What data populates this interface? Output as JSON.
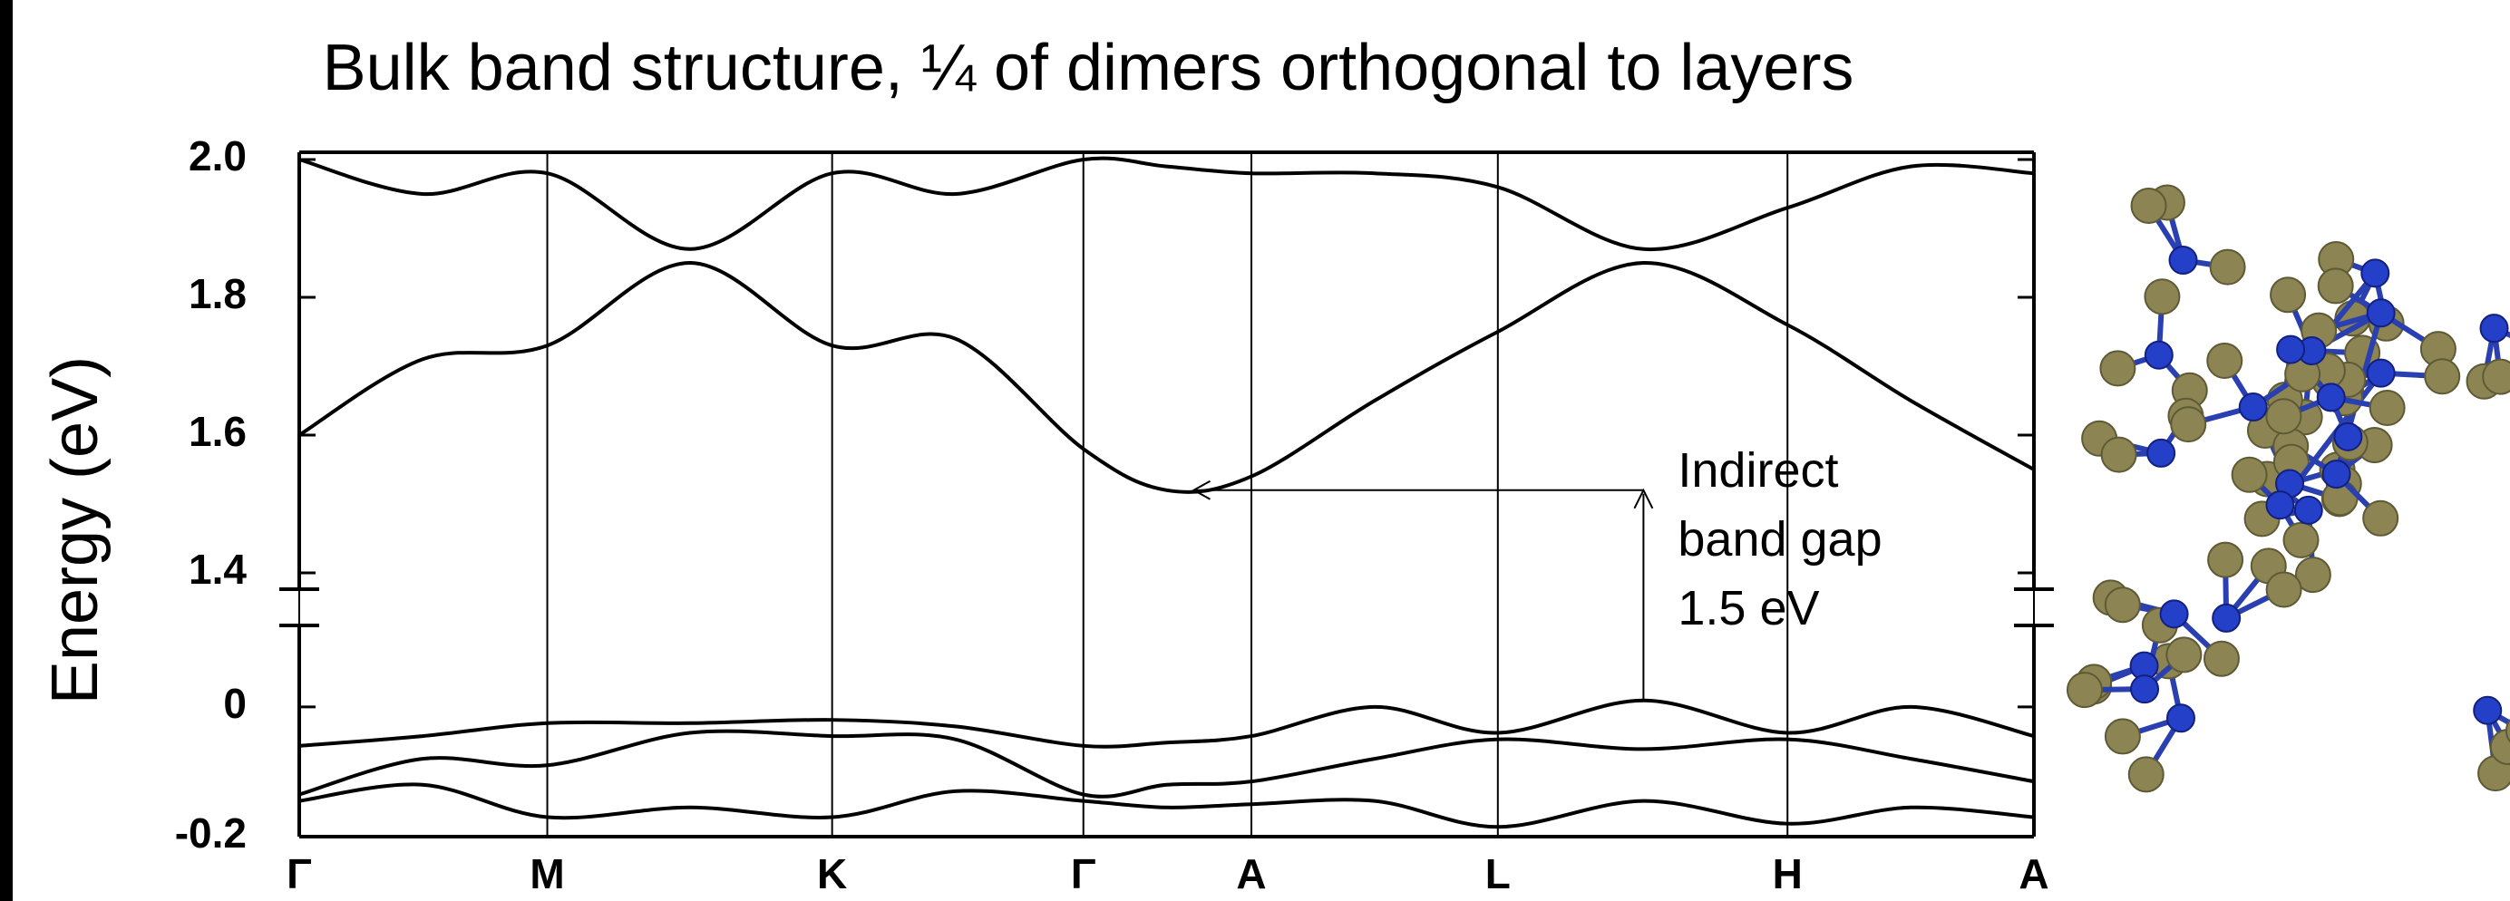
{
  "chart_data": [
    {
      "type": "line",
      "title": "Bulk band structure, ¼ of dimers orthogonal to layers",
      "ylabel": "Energy (eV)",
      "x": [
        0,
        0.77,
        1.55,
        2.44,
        3.33,
        4.1,
        4.9,
        5.42,
        5.95,
        6.72,
        7.49,
        8.4,
        9.3,
        10.07,
        10.84
      ],
      "ylim": [
        1.4,
        2.0
      ],
      "yticks": [
        1.4,
        1.6,
        1.8,
        {
          "value": 2,
          "label": "2.0"
        }
      ],
      "series": [
        {
          "color": "#000000",
          "values": [
            1.6,
            1.71,
            1.73,
            1.85,
            1.73,
            1.74,
            1.58,
            1.52,
            1.54,
            1.65,
            1.75,
            1.85,
            1.76,
            1.65,
            1.55
          ]
        },
        {
          "color": "#000000",
          "values": [
            2.0,
            1.95,
            1.98,
            1.87,
            1.98,
            1.95,
            2.0,
            1.99,
            1.98,
            1.98,
            1.96,
            1.87,
            1.93,
            1.99,
            1.98
          ]
        }
      ],
      "annotation": [
        "Indirect",
        "band gap",
        "1.5 eV"
      ]
    },
    {
      "type": "line",
      "xlim": [
        0,
        10.84
      ],
      "xticks": [
        {
          "value": 0,
          "label": "Γ"
        },
        {
          "value": 1.55,
          "label": "M"
        },
        {
          "value": 3.33,
          "label": "K"
        },
        {
          "value": 4.9,
          "label": "Γ"
        },
        {
          "value": 5.95,
          "label": "A"
        },
        {
          "value": 7.49,
          "label": "L"
        },
        {
          "value": 9.3,
          "label": "H"
        },
        {
          "value": 10.84,
          "label": "A"
        }
      ],
      "ylim": [
        -0.2,
        0.12
      ],
      "yticks": [
        -0.2,
        0
      ],
      "series": [
        {
          "color": "#000000",
          "values": [
            -0.06,
            -0.045,
            -0.025,
            -0.025,
            -0.02,
            -0.03,
            -0.06,
            -0.055,
            -0.045,
            0.0,
            -0.04,
            0.01,
            -0.04,
            0.0,
            -0.045
          ]
        },
        {
          "color": "#000000",
          "values": [
            -0.135,
            -0.08,
            -0.09,
            -0.04,
            -0.045,
            -0.05,
            -0.135,
            -0.12,
            -0.115,
            -0.08,
            -0.05,
            -0.065,
            -0.05,
            -0.08,
            -0.115
          ]
        },
        {
          "color": "#000000",
          "values": [
            -0.145,
            -0.12,
            -0.17,
            -0.155,
            -0.17,
            -0.13,
            -0.145,
            -0.155,
            -0.15,
            -0.145,
            -0.185,
            -0.145,
            -0.18,
            -0.155,
            -0.17
          ]
        }
      ]
    }
  ]
}
